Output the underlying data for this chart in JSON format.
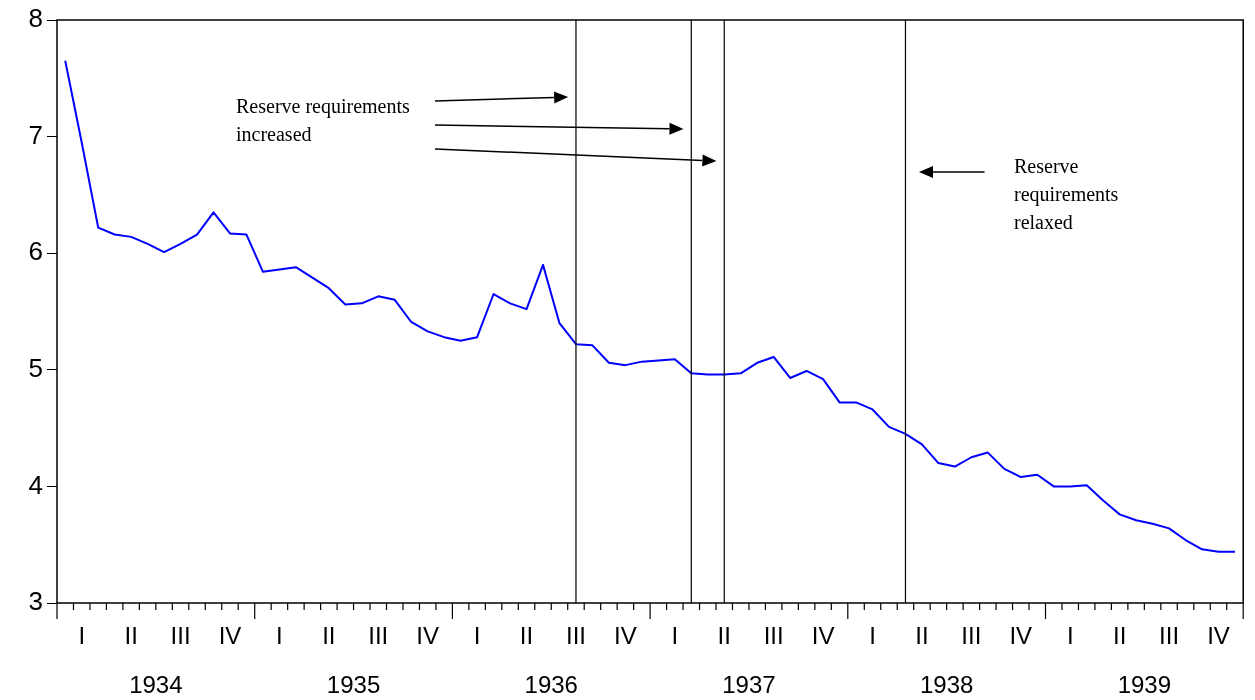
{
  "chart_data": {
    "type": "line",
    "categories": [
      null,
      "I",
      null,
      null,
      "II",
      null,
      null,
      "III",
      null,
      null,
      "IV",
      null,
      null,
      "I",
      null,
      null,
      "II",
      null,
      null,
      "III",
      null,
      null,
      "IV",
      null,
      null,
      "I",
      null,
      null,
      "II",
      null,
      null,
      "III",
      null,
      null,
      "IV",
      null,
      null,
      "I",
      null,
      null,
      "II",
      null,
      null,
      "III",
      null,
      null,
      "IV",
      null,
      null,
      "I",
      null,
      null,
      "II",
      null,
      null,
      "III",
      null,
      null,
      "IV",
      null,
      null,
      "I",
      null,
      null,
      "II",
      null,
      null,
      "III",
      null,
      null,
      "IV",
      null
    ],
    "series": [
      {
        "color": "#0000ff",
        "values": [
          7.65,
          6.95,
          6.22,
          6.16,
          6.14,
          6.08,
          6.01,
          6.08,
          6.16,
          6.35,
          6.17,
          6.16,
          5.84,
          5.86,
          5.88,
          5.79,
          5.7,
          5.56,
          5.57,
          5.63,
          5.6,
          5.41,
          5.33,
          5.28,
          5.25,
          5.28,
          5.65,
          5.57,
          5.52,
          5.9,
          5.4,
          5.22,
          5.21,
          5.06,
          5.04,
          5.07,
          5.08,
          5.09,
          4.97,
          4.96,
          4.96,
          4.97,
          5.06,
          5.11,
          4.93,
          4.99,
          4.92,
          4.72,
          4.72,
          4.66,
          4.51,
          4.45,
          4.36,
          4.2,
          4.17,
          4.25,
          4.29,
          4.15,
          4.08,
          4.1,
          4.0,
          4.0,
          4.01,
          3.88,
          3.76,
          3.71,
          3.68,
          3.64,
          3.54,
          3.46,
          3.44,
          3.44
        ]
      }
    ],
    "ylim": [
      3,
      8
    ],
    "yticks": [
      3,
      4,
      5,
      6,
      7,
      8
    ],
    "annotations": [
      "Reserve requirements\nincreased",
      "Reserve\nrequirements\nrelaxed",
      "1934",
      "1935",
      "1936",
      "1937",
      "1938",
      "1939"
    ],
    "grid": false,
    "legend": false,
    "marker": "none",
    "line_style": "solid"
  }
}
